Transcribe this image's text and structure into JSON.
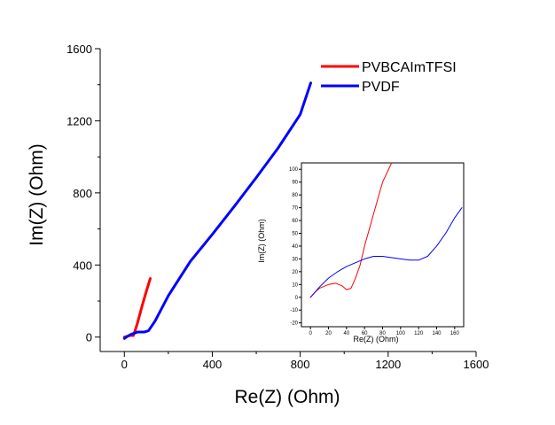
{
  "colors": {
    "red": "#ff0000",
    "blue": "#0000ff"
  },
  "chart_data": [
    {
      "type": "line",
      "title": "",
      "xlabel": "Re(Z) (Ohm)",
      "ylabel": "Im(Z) (Ohm)",
      "xlim": [
        -110,
        1600
      ],
      "ylim": [
        -80,
        1600
      ],
      "xticks": [
        0,
        400,
        800,
        1200,
        1600
      ],
      "xtick_labels": [
        "0",
        "400",
        "800",
        "1200",
        "1600"
      ],
      "yticks": [
        0,
        400,
        800,
        1200,
        1600
      ],
      "ytick_labels": [
        "0",
        "400",
        "800",
        "1200",
        "1600"
      ],
      "legend": {
        "position": "top-right",
        "entries": [
          "PVBCAImTFSI",
          "PVDF"
        ]
      },
      "series": [
        {
          "name": "PVBCAImTFSI",
          "color": "#ff0000",
          "points": [
            [
              0,
              0
            ],
            [
              15,
              5
            ],
            [
              30,
              10
            ],
            [
              40,
              8
            ],
            [
              45,
              20
            ],
            [
              60,
              80
            ],
            [
              80,
              170
            ],
            [
              100,
              255
            ],
            [
              118,
              325
            ]
          ]
        },
        {
          "name": "PVDF",
          "color": "#0000ff",
          "points": [
            [
              0,
              -8
            ],
            [
              15,
              5
            ],
            [
              30,
              15
            ],
            [
              60,
              28
            ],
            [
              90,
              28
            ],
            [
              110,
              35
            ],
            [
              140,
              90
            ],
            [
              200,
              230
            ],
            [
              300,
              420
            ],
            [
              400,
              570
            ],
            [
              500,
              725
            ],
            [
              600,
              885
            ],
            [
              700,
              1050
            ],
            [
              800,
              1235
            ],
            [
              848,
              1410
            ]
          ]
        }
      ]
    },
    {
      "type": "line",
      "title": "",
      "xlabel": "Re(Z) (Ohm)",
      "ylabel": "Im(Z) (Ohm)",
      "xlim": [
        -10,
        170
      ],
      "ylim": [
        -23,
        105
      ],
      "xticks": [
        0,
        20,
        40,
        60,
        80,
        100,
        120,
        140,
        160
      ],
      "xtick_labels": [
        "0",
        "20",
        "40",
        "60",
        "80",
        "100",
        "120",
        "140",
        "160"
      ],
      "yticks": [
        -20,
        -10,
        0,
        10,
        20,
        30,
        40,
        50,
        60,
        70,
        80,
        90,
        100
      ],
      "ytick_labels": [
        "-20",
        "-10",
        "0",
        "10",
        "20",
        "30",
        "40",
        "50",
        "60",
        "70",
        "80",
        "90",
        "100"
      ],
      "series": [
        {
          "name": "PVBCAImTFSI",
          "color": "#ff0000",
          "points": [
            [
              0,
              0
            ],
            [
              5,
              4
            ],
            [
              10,
              7
            ],
            [
              20,
              10
            ],
            [
              28,
              11
            ],
            [
              35,
              9
            ],
            [
              40,
              6
            ],
            [
              45,
              7
            ],
            [
              50,
              15
            ],
            [
              55,
              25
            ],
            [
              60,
              40
            ],
            [
              70,
              65
            ],
            [
              80,
              90
            ],
            [
              90,
              105
            ]
          ]
        },
        {
          "name": "PVDF",
          "color": "#0000ff",
          "points": [
            [
              0,
              0
            ],
            [
              10,
              8
            ],
            [
              20,
              15
            ],
            [
              30,
              20
            ],
            [
              40,
              24
            ],
            [
              50,
              27
            ],
            [
              60,
              30
            ],
            [
              70,
              32
            ],
            [
              80,
              32
            ],
            [
              90,
              31
            ],
            [
              100,
              30
            ],
            [
              110,
              29
            ],
            [
              120,
              29
            ],
            [
              130,
              32
            ],
            [
              140,
              40
            ],
            [
              150,
              50
            ],
            [
              160,
              62
            ],
            [
              168,
              70
            ]
          ]
        }
      ]
    }
  ]
}
